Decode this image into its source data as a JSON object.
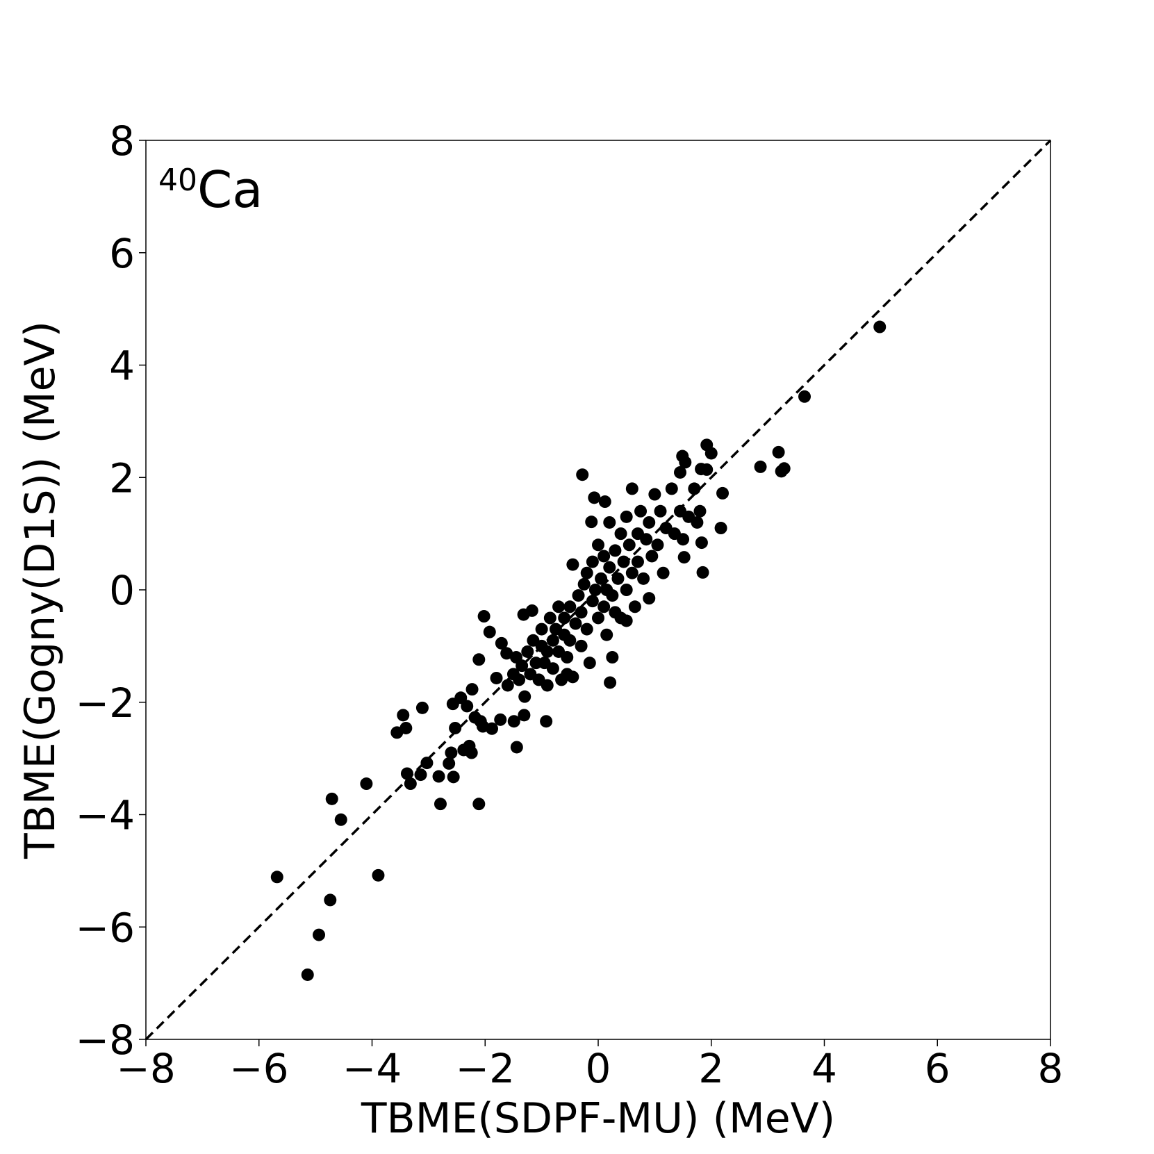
{
  "chart_data": {
    "type": "scatter",
    "xlabel": "TBME(SDPF-MU) (MeV)",
    "ylabel": "TBME(Gogny(D1S)) (MeV)",
    "annotation": {
      "superscript": "40",
      "text": "Ca"
    },
    "diagonal": true,
    "color": "#000000",
    "xlim": [
      -8,
      8
    ],
    "ylim": [
      -8,
      8
    ],
    "xticks": [
      {
        "value": -8,
        "label": "−8"
      },
      {
        "value": -6,
        "label": "−6"
      },
      {
        "value": -4,
        "label": "−4"
      },
      {
        "value": -2,
        "label": "−2"
      },
      0,
      2,
      4,
      6,
      8
    ],
    "yticks": [
      {
        "value": -8,
        "label": "−8"
      },
      {
        "value": -6,
        "label": "−6"
      },
      {
        "value": -4,
        "label": "−4"
      },
      {
        "value": -2,
        "label": "−2"
      },
      0,
      2,
      4,
      6,
      8
    ],
    "x": [
      4.98,
      3.65,
      3.19,
      2.87,
      3.24,
      3.29,
      1.92,
      2.0,
      1.49,
      1.54,
      1.82,
      1.92,
      1.45,
      2.2,
      2.17,
      1.85,
      1.83,
      1.52,
      -0.28,
      -0.07,
      0.12,
      -0.12,
      0.21,
      -0.92,
      -1.44,
      -2.11,
      -2.79,
      -5.68,
      -3.89,
      -4.74,
      -4.94,
      -5.14,
      -4.71,
      -4.55,
      -4.1,
      -3.56,
      -3.4,
      -3.45,
      -3.11,
      -3.38,
      -3.32,
      -3.03,
      -3.14,
      -2.82,
      -2.56,
      -2.64,
      -2.6,
      -2.53,
      -2.57,
      -2.43,
      -2.32,
      -2.38,
      -2.28,
      -2.24,
      -2.18,
      -2.08,
      -2.02,
      -1.92,
      -2.11,
      -2.23,
      -2.04,
      -1.88,
      -1.73,
      -1.49,
      -1.31,
      -1.71,
      -1.62,
      -1.32,
      -1.17,
      -1.8,
      -1.6,
      -1.5,
      -1.45,
      -1.4,
      -1.35,
      -1.3,
      -1.25,
      -1.2,
      -1.15,
      -1.1,
      -1.05,
      -1.0,
      -1.0,
      -0.95,
      -0.9,
      -0.9,
      -0.85,
      -0.8,
      -0.8,
      -0.75,
      -0.7,
      -0.7,
      -0.65,
      -0.6,
      -0.6,
      -0.55,
      -0.5,
      -0.5,
      -0.45,
      -0.45,
      -0.4,
      -0.35,
      -0.3,
      -0.3,
      -0.25,
      -0.2,
      -0.2,
      -0.15,
      -0.1,
      -0.1,
      -0.05,
      0.0,
      0.0,
      0.05,
      0.1,
      0.1,
      0.15,
      0.15,
      0.2,
      0.2,
      0.25,
      0.3,
      0.3,
      0.35,
      0.4,
      0.4,
      0.45,
      0.5,
      0.5,
      0.55,
      0.6,
      0.6,
      0.65,
      0.7,
      0.7,
      0.75,
      0.8,
      0.85,
      0.9,
      0.9,
      0.95,
      1.0,
      1.05,
      1.1,
      1.15,
      1.2,
      1.3,
      1.35,
      1.45,
      1.5,
      1.6,
      1.7,
      1.75,
      1.8,
      0.5,
      -0.55,
      0.25
    ],
    "values": [
      4.68,
      3.44,
      2.45,
      2.19,
      2.11,
      2.16,
      2.58,
      2.43,
      2.38,
      2.27,
      2.15,
      2.14,
      2.09,
      1.72,
      1.1,
      0.31,
      0.84,
      0.58,
      2.05,
      1.64,
      1.57,
      1.21,
      -1.65,
      -2.34,
      -2.8,
      -3.81,
      -3.81,
      -5.11,
      -5.08,
      -5.52,
      -6.14,
      -6.85,
      -3.72,
      -4.09,
      -3.45,
      -2.54,
      -2.46,
      -2.23,
      -2.1,
      -3.27,
      -3.45,
      -3.08,
      -3.29,
      -3.32,
      -3.33,
      -3.09,
      -2.9,
      -2.46,
      -2.03,
      -1.92,
      -2.07,
      -2.85,
      -2.78,
      -2.9,
      -2.27,
      -2.34,
      -0.47,
      -0.75,
      -1.24,
      -1.77,
      -2.43,
      -2.47,
      -2.31,
      -2.34,
      -2.23,
      -0.95,
      -1.13,
      -0.44,
      -0.37,
      -1.57,
      -1.7,
      -1.5,
      -1.2,
      -1.6,
      -1.35,
      -1.9,
      -1.1,
      -1.5,
      -0.9,
      -1.3,
      -1.6,
      -1.0,
      -0.7,
      -1.3,
      -1.1,
      -1.7,
      -0.5,
      -0.9,
      -1.4,
      -0.7,
      -1.1,
      -0.3,
      -1.6,
      -0.8,
      -0.5,
      -1.2,
      -0.3,
      -0.9,
      -1.55,
      0.45,
      -0.6,
      -0.1,
      -1.0,
      -0.4,
      0.1,
      -0.7,
      0.3,
      -1.3,
      -0.2,
      0.5,
      0.0,
      -0.5,
      0.8,
      0.2,
      -0.3,
      0.6,
      0.0,
      -0.8,
      0.4,
      1.2,
      -0.1,
      0.7,
      -0.4,
      0.2,
      1.0,
      -0.5,
      0.5,
      0.0,
      1.3,
      0.8,
      0.3,
      1.8,
      -0.3,
      1.0,
      0.5,
      1.4,
      0.2,
      0.9,
      1.2,
      -0.15,
      0.6,
      1.7,
      0.8,
      1.4,
      0.3,
      1.1,
      1.8,
      1.0,
      1.4,
      0.9,
      1.3,
      1.8,
      1.2,
      1.4,
      -0.55,
      -1.5,
      -1.2
    ]
  }
}
